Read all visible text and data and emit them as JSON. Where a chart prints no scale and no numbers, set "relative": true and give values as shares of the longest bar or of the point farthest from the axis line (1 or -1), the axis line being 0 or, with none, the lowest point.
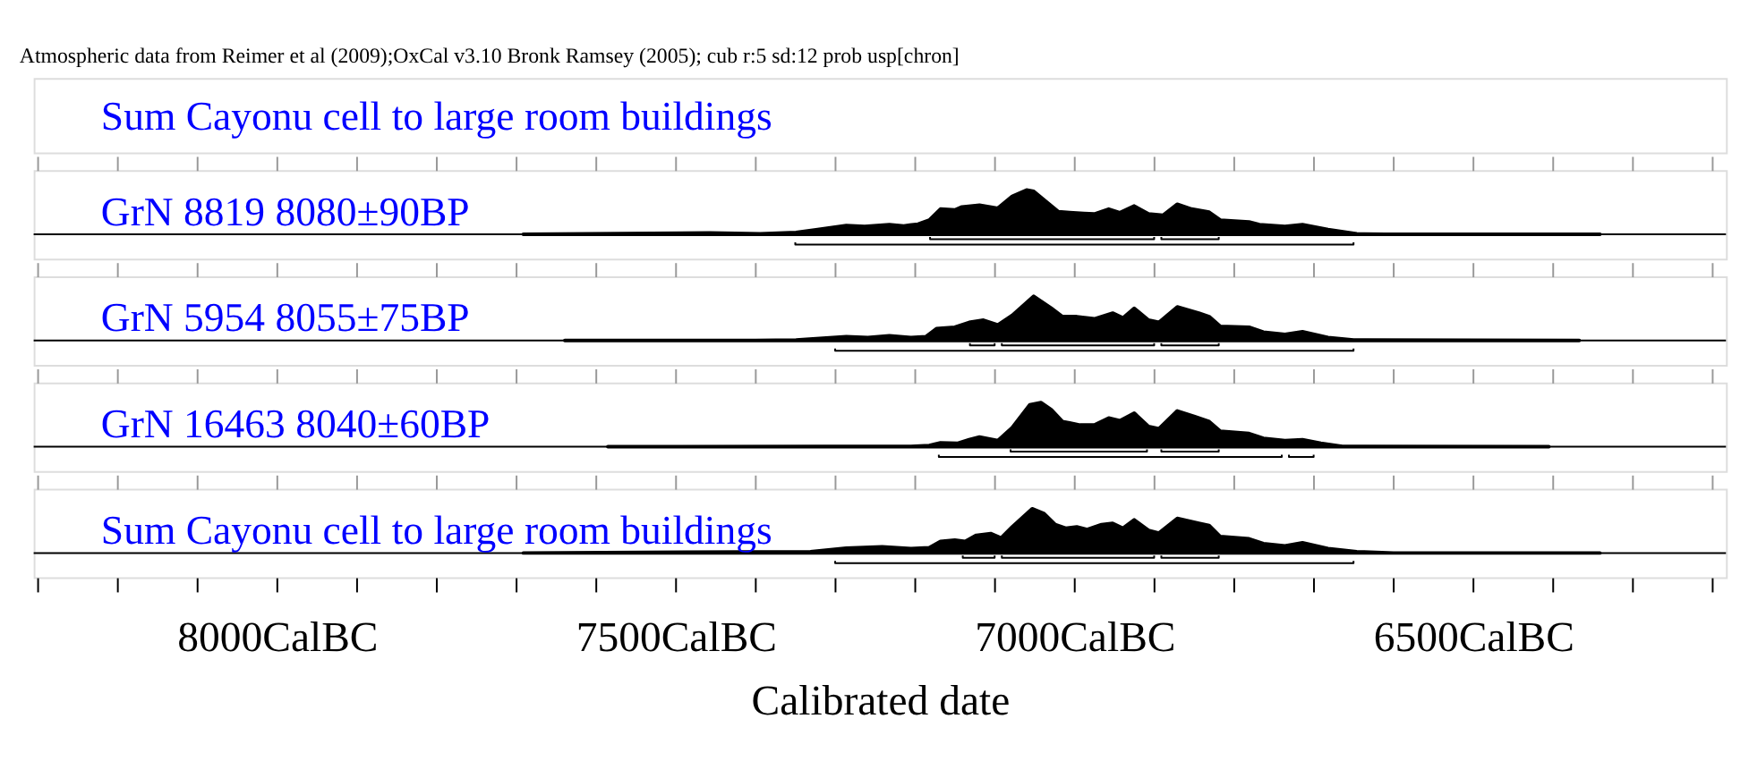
{
  "chart_data": [
    {
      "type": "area",
      "title": "GrN 8819  8080±90BP",
      "relative": true,
      "xlim": [
        8305,
        6183
      ],
      "tick_labels": false,
      "annotations": [
        "Atmospheric data from Reimer et al (2009);OxCal v3.10 Bronk Ramsey (2005); cub r:5 sd:12 prob usp[chron]",
        "Sum Cayonu cell to large room buildings"
      ],
      "xticks": [
        {
          "value": 8300,
          "label": null
        },
        {
          "value": 8200,
          "label": null
        },
        {
          "value": 8100,
          "label": null
        },
        {
          "value": 8000,
          "label": null
        },
        {
          "value": 7900,
          "label": null
        },
        {
          "value": 7800,
          "label": null
        },
        {
          "value": 7700,
          "label": null
        },
        {
          "value": 7600,
          "label": null
        },
        {
          "value": 7500,
          "label": null
        },
        {
          "value": 7400,
          "label": null
        },
        {
          "value": 7300,
          "label": null
        },
        {
          "value": 7200,
          "label": null
        },
        {
          "value": 7100,
          "label": null
        },
        {
          "value": 7000,
          "label": null
        },
        {
          "value": 6900,
          "label": null
        },
        {
          "value": 6800,
          "label": null
        },
        {
          "value": 6700,
          "label": null
        },
        {
          "value": 6600,
          "label": null
        },
        {
          "value": 6500,
          "label": null
        },
        {
          "value": 6400,
          "label": null
        },
        {
          "value": 6300,
          "label": null
        },
        {
          "value": 6200,
          "label": null
        }
      ],
      "series": [
        {
          "color": "#000000",
          "x": [
            7691,
            7457,
            7394,
            7349,
            7322,
            7286,
            7263,
            7232,
            7214,
            7196,
            7182,
            7168,
            7150,
            7141,
            7119,
            7096,
            7078,
            7060,
            7051,
            7033,
            7020,
            7006,
            6988,
            6975,
            6957,
            6943,
            6925,
            6907,
            6889,
            6871,
            6853,
            6831,
            6817,
            6781,
            6768,
            6736,
            6714,
            6682,
            6646,
            6610,
            6341
          ],
          "values": [
            0,
            0.03,
            0.01,
            0.04,
            0.11,
            0.2,
            0.18,
            0.22,
            0.19,
            0.23,
            0.32,
            0.57,
            0.55,
            0.62,
            0.66,
            0.59,
            0.86,
            1,
            0.97,
            0.7,
            0.51,
            0.49,
            0.47,
            0.46,
            0.57,
            0.49,
            0.64,
            0.46,
            0.43,
            0.68,
            0.57,
            0.5,
            0.32,
            0.28,
            0.22,
            0.18,
            0.22,
            0.11,
            0.01,
            0,
            0
          ]
        },
        {
          "type": "line",
          "color": "#000000",
          "x": [
            7181,
            7181,
            6900,
            6900
          ],
          "values": [
            -0.06,
            -0.11,
            -0.11,
            -0.06
          ]
        },
        {
          "type": "line",
          "color": "#000000",
          "x": [
            6891,
            6891,
            6819,
            6819
          ],
          "values": [
            -0.06,
            -0.11,
            -0.11,
            -0.06
          ]
        },
        {
          "type": "line",
          "color": "#000000",
          "x": [
            7350,
            7350,
            6650,
            6650
          ],
          "values": [
            -0.18,
            -0.23,
            -0.23,
            -0.18
          ]
        }
      ]
    },
    {
      "type": "area",
      "title": "GrN 5954  8055±75BP",
      "relative": true,
      "xlim": [
        8305,
        6183
      ],
      "tick_labels": false,
      "xticks": [
        {
          "value": 8300,
          "label": null
        },
        {
          "value": 8200,
          "label": null
        },
        {
          "value": 8100,
          "label": null
        },
        {
          "value": 8000,
          "label": null
        },
        {
          "value": 7900,
          "label": null
        },
        {
          "value": 7800,
          "label": null
        },
        {
          "value": 7700,
          "label": null
        },
        {
          "value": 7600,
          "label": null
        },
        {
          "value": 7500,
          "label": null
        },
        {
          "value": 7400,
          "label": null
        },
        {
          "value": 7300,
          "label": null
        },
        {
          "value": 7200,
          "label": null
        },
        {
          "value": 7100,
          "label": null
        },
        {
          "value": 7000,
          "label": null
        },
        {
          "value": 6900,
          "label": null
        },
        {
          "value": 6800,
          "label": null
        },
        {
          "value": 6700,
          "label": null
        },
        {
          "value": 6600,
          "label": null
        },
        {
          "value": 6500,
          "label": null
        },
        {
          "value": 6400,
          "label": null
        },
        {
          "value": 6300,
          "label": null
        },
        {
          "value": 6200,
          "label": null
        }
      ],
      "series": [
        {
          "color": "#000000",
          "x": [
            7639,
            7400,
            7349,
            7286,
            7259,
            7232,
            7205,
            7186,
            7173,
            7150,
            7132,
            7114,
            7096,
            7078,
            7051,
            7029,
            7015,
            6997,
            6975,
            6952,
            6939,
            6925,
            6907,
            6894,
            6871,
            6844,
            6831,
            6817,
            6781,
            6763,
            6736,
            6714,
            6682,
            6650,
            6367
          ],
          "values": [
            0,
            0,
            0.01,
            0.09,
            0.07,
            0.11,
            0.07,
            0.09,
            0.27,
            0.3,
            0.41,
            0.46,
            0.35,
            0.57,
            1,
            0.73,
            0.54,
            0.54,
            0.49,
            0.62,
            0.51,
            0.73,
            0.46,
            0.41,
            0.76,
            0.62,
            0.54,
            0.32,
            0.3,
            0.19,
            0.14,
            0.2,
            0.07,
            0.01,
            0
          ]
        },
        {
          "type": "line",
          "color": "#000000",
          "x": [
            7131,
            7131,
            7100,
            7100
          ],
          "values": [
            -0.06,
            -0.11,
            -0.11,
            -0.06
          ]
        },
        {
          "type": "line",
          "color": "#000000",
          "x": [
            7091,
            7091,
            6900,
            6900
          ],
          "values": [
            -0.06,
            -0.11,
            -0.11,
            -0.06
          ]
        },
        {
          "type": "line",
          "color": "#000000",
          "x": [
            6891,
            6891,
            6819,
            6819
          ],
          "values": [
            -0.06,
            -0.11,
            -0.11,
            -0.06
          ]
        },
        {
          "type": "line",
          "color": "#000000",
          "x": [
            7300,
            7300,
            6650,
            6650
          ],
          "values": [
            -0.18,
            -0.23,
            -0.23,
            -0.18
          ]
        }
      ]
    },
    {
      "type": "area",
      "title": "GrN 16463  8040±60BP",
      "relative": true,
      "xlim": [
        8305,
        6183
      ],
      "tick_labels": false,
      "xticks": [
        {
          "value": 8300,
          "label": null
        },
        {
          "value": 8200,
          "label": null
        },
        {
          "value": 8100,
          "label": null
        },
        {
          "value": 8000,
          "label": null
        },
        {
          "value": 7900,
          "label": null
        },
        {
          "value": 7800,
          "label": null
        },
        {
          "value": 7700,
          "label": null
        },
        {
          "value": 7600,
          "label": null
        },
        {
          "value": 7500,
          "label": null
        },
        {
          "value": 7400,
          "label": null
        },
        {
          "value": 7300,
          "label": null
        },
        {
          "value": 7200,
          "label": null
        },
        {
          "value": 7100,
          "label": null
        },
        {
          "value": 7000,
          "label": null
        },
        {
          "value": 6900,
          "label": null
        },
        {
          "value": 6800,
          "label": null
        },
        {
          "value": 6700,
          "label": null
        },
        {
          "value": 6600,
          "label": null
        },
        {
          "value": 6500,
          "label": null
        },
        {
          "value": 6400,
          "label": null
        },
        {
          "value": 6300,
          "label": null
        },
        {
          "value": 6200,
          "label": null
        }
      ],
      "series": [
        {
          "color": "#000000",
          "x": [
            7585,
            7313,
            7205,
            7182,
            7168,
            7146,
            7132,
            7119,
            7096,
            7078,
            7056,
            7042,
            7029,
            7015,
            7006,
            6993,
            6975,
            6957,
            6943,
            6925,
            6907,
            6894,
            6871,
            6849,
            6831,
            6817,
            6781,
            6763,
            6736,
            6714,
            6691,
            6664,
            6405
          ],
          "values": [
            0,
            0.01,
            0.01,
            0.03,
            0.09,
            0.08,
            0.16,
            0.22,
            0.14,
            0.43,
            0.95,
            1,
            0.84,
            0.57,
            0.54,
            0.49,
            0.49,
            0.65,
            0.59,
            0.76,
            0.46,
            0.41,
            0.81,
            0.68,
            0.57,
            0.35,
            0.3,
            0.19,
            0.14,
            0.16,
            0.08,
            0.01,
            0
          ]
        },
        {
          "type": "line",
          "color": "#000000",
          "x": [
            7080,
            7080,
            6909,
            6909
          ],
          "values": [
            -0.06,
            -0.11,
            -0.11,
            -0.06
          ]
        },
        {
          "type": "line",
          "color": "#000000",
          "x": [
            6891,
            6891,
            6819,
            6819
          ],
          "values": [
            -0.06,
            -0.11,
            -0.11,
            -0.06
          ]
        },
        {
          "type": "line",
          "color": "#000000",
          "x": [
            7170,
            7170,
            6740,
            6740
          ],
          "values": [
            -0.18,
            -0.23,
            -0.23,
            -0.18
          ]
        },
        {
          "type": "line",
          "color": "#000000",
          "x": [
            6731,
            6731,
            6700,
            6700
          ],
          "values": [
            -0.18,
            -0.23,
            -0.23,
            -0.18
          ]
        }
      ]
    },
    {
      "type": "area",
      "title": "Sum Cayonu cell to large room buildings",
      "relative": true,
      "xlim": [
        8305,
        6183
      ],
      "tick_labels": "x",
      "xlabel": "Calibrated date",
      "xticks": [
        {
          "value": 8300,
          "label": null
        },
        {
          "value": 8200,
          "label": null
        },
        {
          "value": 8100,
          "label": null
        },
        {
          "value": 8000,
          "label": "8000CalBC"
        },
        {
          "value": 7900,
          "label": null
        },
        {
          "value": 7800,
          "label": null
        },
        {
          "value": 7700,
          "label": null
        },
        {
          "value": 7600,
          "label": null
        },
        {
          "value": 7500,
          "label": "7500CalBC"
        },
        {
          "value": 7400,
          "label": null
        },
        {
          "value": 7300,
          "label": null
        },
        {
          "value": 7200,
          "label": null
        },
        {
          "value": 7100,
          "label": null
        },
        {
          "value": 7000,
          "label": "7000CalBC"
        },
        {
          "value": 6900,
          "label": null
        },
        {
          "value": 6800,
          "label": null
        },
        {
          "value": 6700,
          "label": null
        },
        {
          "value": 6600,
          "label": null
        },
        {
          "value": 6500,
          "label": "6500CalBC"
        },
        {
          "value": 6400,
          "label": null
        },
        {
          "value": 6300,
          "label": null
        },
        {
          "value": 6200,
          "label": null
        }
      ],
      "series": [
        {
          "color": "#000000",
          "x": [
            7691,
            7331,
            7286,
            7241,
            7205,
            7182,
            7168,
            7150,
            7137,
            7123,
            7105,
            7092,
            7078,
            7053,
            7038,
            7024,
            7011,
            6997,
            6984,
            6966,
            6952,
            6939,
            6925,
            6907,
            6894,
            6871,
            6844,
            6831,
            6817,
            6781,
            6763,
            6736,
            6714,
            6682,
            6646,
            6600,
            6341
          ],
          "values": [
            0,
            0.03,
            0.11,
            0.14,
            0.1,
            0.12,
            0.26,
            0.29,
            0.26,
            0.4,
            0.44,
            0.34,
            0.59,
            1,
            0.89,
            0.64,
            0.56,
            0.59,
            0.53,
            0.64,
            0.67,
            0.56,
            0.75,
            0.51,
            0.45,
            0.78,
            0.67,
            0.62,
            0.37,
            0.32,
            0.21,
            0.16,
            0.23,
            0.1,
            0.03,
            0,
            0
          ]
        },
        {
          "type": "line",
          "color": "#000000",
          "x": [
            7140,
            7140,
            7100,
            7100
          ],
          "values": [
            -0.06,
            -0.11,
            -0.11,
            -0.06
          ]
        },
        {
          "type": "line",
          "color": "#000000",
          "x": [
            7091,
            7091,
            6900,
            6900
          ],
          "values": [
            -0.06,
            -0.11,
            -0.11,
            -0.06
          ]
        },
        {
          "type": "line",
          "color": "#000000",
          "x": [
            6891,
            6891,
            6819,
            6819
          ],
          "values": [
            -0.06,
            -0.11,
            -0.11,
            -0.06
          ]
        },
        {
          "type": "line",
          "color": "#000000",
          "x": [
            7300,
            7300,
            6650,
            6650
          ],
          "values": [
            -0.18,
            -0.23,
            -0.23,
            -0.18
          ]
        }
      ]
    }
  ]
}
